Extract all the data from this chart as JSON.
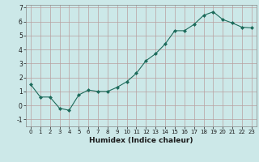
{
  "x": [
    0,
    1,
    2,
    3,
    4,
    5,
    6,
    7,
    8,
    9,
    10,
    11,
    12,
    13,
    14,
    15,
    16,
    17,
    18,
    19,
    20,
    21,
    22,
    23
  ],
  "y": [
    1.5,
    0.6,
    0.6,
    -0.2,
    -0.35,
    0.75,
    1.1,
    1.0,
    1.0,
    1.3,
    1.7,
    2.3,
    3.2,
    3.7,
    4.4,
    5.35,
    5.35,
    5.8,
    6.45,
    6.7,
    6.15,
    5.9,
    5.6,
    5.55
  ],
  "line_color": "#1c6b5b",
  "marker": "D",
  "marker_size": 2.0,
  "bg_color": "#cce8e8",
  "grid_color": "#b8a0a0",
  "xlabel": "Humidex (Indice chaleur)",
  "xlim": [
    -0.5,
    23.5
  ],
  "ylim": [
    -1.5,
    7.2
  ],
  "yticks": [
    -1,
    0,
    1,
    2,
    3,
    4,
    5,
    6,
    7
  ],
  "ytick_labels": [
    "-1",
    "0",
    "1",
    "2",
    "3",
    "4",
    "5",
    "6",
    "7"
  ],
  "xticks": [
    0,
    1,
    2,
    3,
    4,
    5,
    6,
    7,
    8,
    9,
    10,
    11,
    12,
    13,
    14,
    15,
    16,
    17,
    18,
    19,
    20,
    21,
    22,
    23
  ]
}
